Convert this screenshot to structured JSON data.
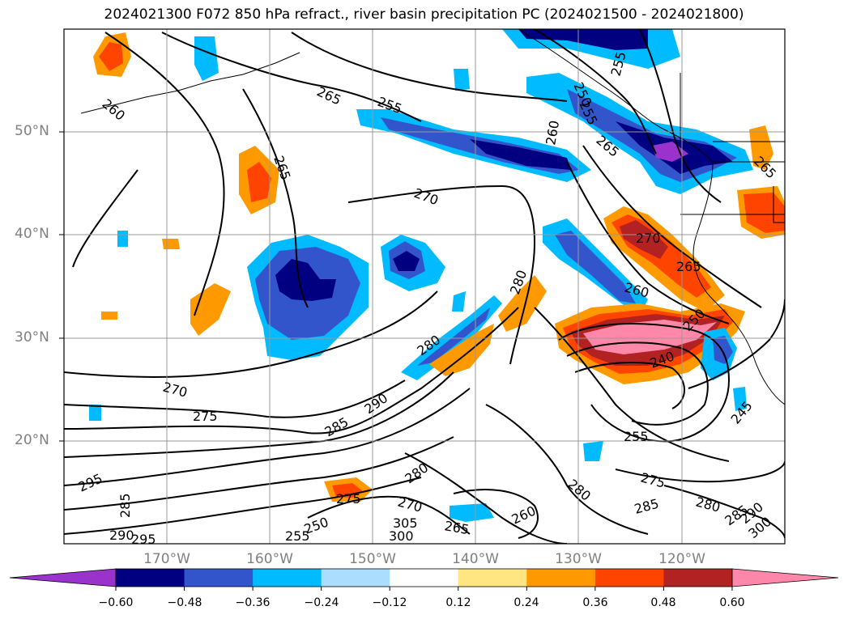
{
  "title": "2024021300 F072 850 hPa refract., river basin precipitation PC (2024021500 - 2024021800)",
  "latitude_labels": [
    "50°N",
    "40°N",
    "30°N",
    "20°N"
  ],
  "longitude_labels": [
    "170°W",
    "160°W",
    "150°W",
    "140°W",
    "130°W",
    "120°W"
  ],
  "colorbar": {
    "ticks": [
      "−0.60",
      "−0.48",
      "−0.36",
      "−0.24",
      "−0.12",
      "0.12",
      "0.24",
      "0.36",
      "0.48",
      "0.60"
    ],
    "colors": [
      "#9933cc",
      "#000080",
      "#3355cc",
      "#00bbff",
      "#aaddff",
      "#ffffff",
      "#ffe680",
      "#ff9900",
      "#ff4400",
      "#b22222",
      "#ff88aa"
    ]
  },
  "contour_labels": [
    "265",
    "255",
    "260",
    "265",
    "270",
    "250",
    "255",
    "265",
    "265",
    "270",
    "265",
    "260",
    "280",
    "280",
    "260",
    "240",
    "250",
    "290",
    "285",
    "270",
    "275",
    "295",
    "285",
    "290",
    "295",
    "255",
    "275",
    "280",
    "280",
    "285",
    "270",
    "260",
    "265",
    "250",
    "300",
    "305",
    "280",
    "255",
    "275",
    "285",
    "245",
    "290",
    "300",
    "255"
  ]
}
